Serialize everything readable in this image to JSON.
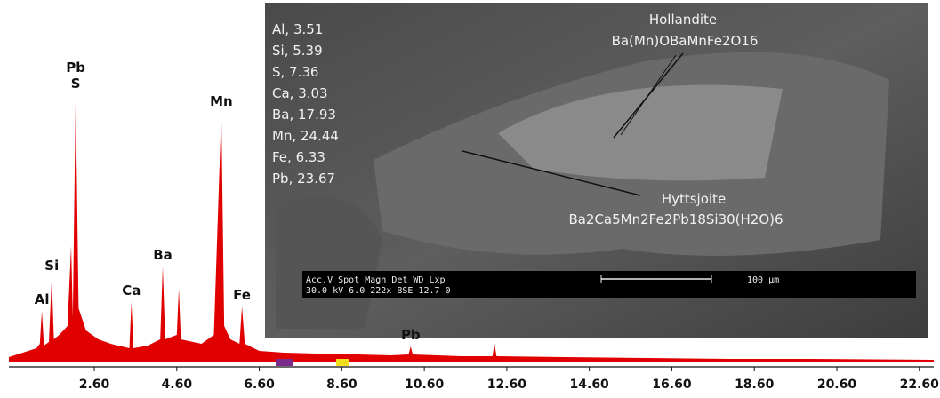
{
  "chart_data": {
    "type": "spectrum",
    "color": "#e00000",
    "xlim": [
      0.53,
      22.95
    ],
    "ylim": [
      0,
      340
    ],
    "xticks": [
      {
        "value": 2.6,
        "label": "2.60"
      },
      {
        "value": 4.6,
        "label": "4.60"
      },
      {
        "value": 6.6,
        "label": "6.60"
      },
      {
        "value": 8.6,
        "label": "8.60"
      },
      {
        "value": 10.6,
        "label": "10.60"
      },
      {
        "value": 12.6,
        "label": "12.60"
      },
      {
        "value": 14.6,
        "label": "14.60"
      },
      {
        "value": 16.6,
        "label": "16.60"
      },
      {
        "value": 18.6,
        "label": "18.60"
      },
      {
        "value": 20.6,
        "label": "20.60"
      },
      {
        "value": 22.6,
        "label": "22.60"
      }
    ],
    "x": [
      0.53,
      1.2,
      1.28,
      1.33,
      1.38,
      1.5,
      1.57,
      1.62,
      1.75,
      1.95,
      2.04,
      2.08,
      2.15,
      2.22,
      2.4,
      2.7,
      3.0,
      3.45,
      3.5,
      3.55,
      3.9,
      4.2,
      4.26,
      4.32,
      4.6,
      4.65,
      4.7,
      5.2,
      5.5,
      5.68,
      5.75,
      5.9,
      6.12,
      6.18,
      6.25,
      6.6,
      7.2,
      8.0,
      9.0,
      9.8,
      10.22,
      10.27,
      10.32,
      11.5,
      12.25,
      12.3,
      12.35,
      14.0,
      16.0,
      18.0,
      20.0,
      22.95
    ],
    "values": [
      5,
      15,
      20,
      57,
      18,
      22,
      95,
      25,
      30,
      40,
      130,
      50,
      300,
      60,
      35,
      25,
      20,
      15,
      67,
      15,
      18,
      25,
      107,
      25,
      30,
      82,
      25,
      20,
      30,
      280,
      40,
      25,
      20,
      62,
      20,
      12,
      10,
      9,
      8,
      7,
      8,
      17,
      8,
      6,
      6,
      20,
      6,
      5,
      4,
      3,
      3,
      2
    ],
    "peaks": [
      {
        "label": "Al",
        "x": 1.33,
        "y": 57
      },
      {
        "label": "Si",
        "x": 1.57,
        "y": 95
      },
      {
        "label": "S",
        "x": 2.15,
        "y": 300
      },
      {
        "label": "Pb",
        "x": 2.15,
        "y": 300
      },
      {
        "label": "Ca",
        "x": 3.5,
        "y": 67
      },
      {
        "label": "Ba",
        "x": 4.26,
        "y": 107
      },
      {
        "label": "Mn",
        "x": 5.68,
        "y": 280
      },
      {
        "label": "Fe",
        "x": 6.18,
        "y": 62
      },
      {
        "label": "Pb",
        "x": 10.27,
        "y": 17
      }
    ],
    "inset": {
      "composition": [
        "Al, 3.51",
        "Si, 5.39",
        "S, 7.36",
        "Ca, 3.03",
        "Ba, 17.93",
        "Mn, 24.44",
        "Fe, 6.33",
        "Pb, 23.67"
      ],
      "minerals": [
        {
          "name": "Hollandite",
          "formula": "Ba(Mn)OBaMnFe2O16"
        },
        {
          "name": "Hyttsjoite",
          "formula": "Ba2Ca5Mn2Fe2Pb18Si30(H2O)6"
        }
      ],
      "databar": {
        "header": "Acc.V  Spot Magn    Det  WD   Lxp",
        "values": "30.0 kV 6.0   222x    BSE 12.7  0",
        "scale": "100 µm"
      }
    }
  }
}
